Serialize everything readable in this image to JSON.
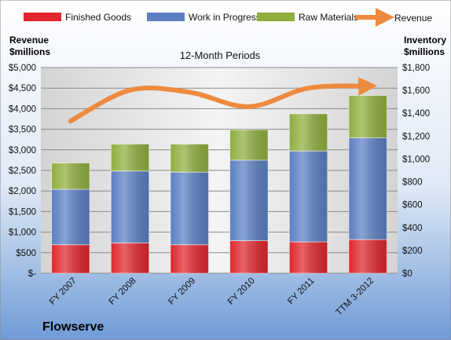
{
  "chart_data": {
    "type": "bar",
    "stacked": true,
    "subtitle": "12-Month Periods",
    "company": "Flowserve",
    "categories": [
      "FY 2007",
      "FY 2008",
      "FY 2009",
      "FY 2010",
      "FY 2011",
      "TTM 3-2012"
    ],
    "series": [
      {
        "name": "Finished Goods",
        "axis": "right",
        "color": "#e0262d",
        "values": [
          250,
          265,
          250,
          285,
          275,
          295
        ]
      },
      {
        "name": "Work in Progress",
        "axis": "right",
        "color": "#5b7fc2",
        "values": [
          485,
          630,
          635,
          705,
          795,
          890
        ]
      },
      {
        "name": "Raw Materials",
        "axis": "right",
        "color": "#8fae3e",
        "values": [
          230,
          235,
          245,
          265,
          325,
          370
        ]
      },
      {
        "name": "Revenue",
        "axis": "left",
        "type": "line",
        "color": "#ee8a3e",
        "values": [
          3700,
          4450,
          4400,
          4050,
          4500,
          4550
        ]
      }
    ],
    "y_left": {
      "label_line1": "Revenue",
      "label_line2": "$millions",
      "ylim": [
        0,
        5000
      ],
      "ticks": [
        0,
        500,
        1000,
        1500,
        2000,
        2500,
        3000,
        3500,
        4000,
        4500,
        5000
      ],
      "tick_labels": [
        "$-",
        "$500",
        "$1,000",
        "$1,500",
        "$2,000",
        "$2,500",
        "$3,000",
        "$3,500",
        "$4,000",
        "$4,500",
        "$5,000"
      ]
    },
    "y_right": {
      "label_line1": "Inventory",
      "label_line2": "$millions",
      "ylim": [
        0,
        1800
      ],
      "ticks": [
        0,
        200,
        400,
        600,
        800,
        1000,
        1200,
        1400,
        1600,
        1800
      ],
      "tick_labels": [
        "$0",
        "$200",
        "$400",
        "$600",
        "$800",
        "$1,000",
        "$1,200",
        "$1,400",
        "$1,600",
        "$1,800"
      ]
    },
    "grid": true,
    "legend_position": "top"
  }
}
